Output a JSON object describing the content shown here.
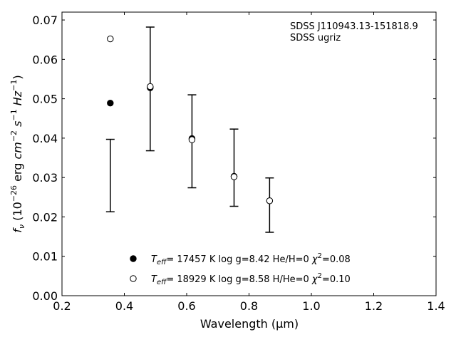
{
  "chart_data": {
    "type": "scatter",
    "xlabel": "Wavelength (μm)",
    "ylabel": "f_ν (10^-26 erg cm^-2 s^-1 Hz^-1)",
    "xlim": [
      0.2,
      1.4
    ],
    "ylim": [
      0.0,
      0.072
    ],
    "xticks": [
      "0.2",
      "0.4",
      "0.6",
      "0.8",
      "1.0",
      "1.2",
      "1.4"
    ],
    "yticks": [
      "0.00",
      "0.01",
      "0.02",
      "0.03",
      "0.04",
      "0.05",
      "0.06",
      "0.07"
    ],
    "grid": false,
    "legend": "bottom-center",
    "annotations": [
      "SDSS J110943.13-151818.9",
      "SDSS ugriz"
    ],
    "observed": {
      "x": [
        0.355,
        0.483,
        0.617,
        0.752,
        0.866
      ],
      "y": [
        0.0305,
        0.0525,
        0.0392,
        0.0325,
        0.023
      ],
      "yerr": [
        0.0092,
        0.0157,
        0.0118,
        0.0098,
        0.0069
      ]
    },
    "series": [
      {
        "name": "T_eff= 17457 K  log g=8.42  He/H=0  χ²=0.08",
        "marker": "filled-circle",
        "x": [
          0.355,
          0.483,
          0.617,
          0.752,
          0.866
        ],
        "y": [
          0.0489,
          0.0528,
          0.0399,
          0.0303,
          0.0241
        ]
      },
      {
        "name": "T_eff= 18929 K  log g=8.58  H/He=0  χ²=0.10",
        "marker": "open-circle",
        "x": [
          0.355,
          0.483,
          0.617,
          0.752,
          0.866
        ],
        "y": [
          0.0652,
          0.0531,
          0.0396,
          0.0302,
          0.0241
        ]
      }
    ],
    "legend_entries": [
      {
        "symbol": "filled-circle",
        "teff": "17457 K",
        "logg": "log g=8.42",
        "comp": "He/H=0",
        "chi": "=0.08"
      },
      {
        "symbol": "open-circle",
        "teff": "18929 K",
        "logg": "log g=8.58",
        "comp": "H/He=0",
        "chi": "=0.10"
      }
    ]
  }
}
